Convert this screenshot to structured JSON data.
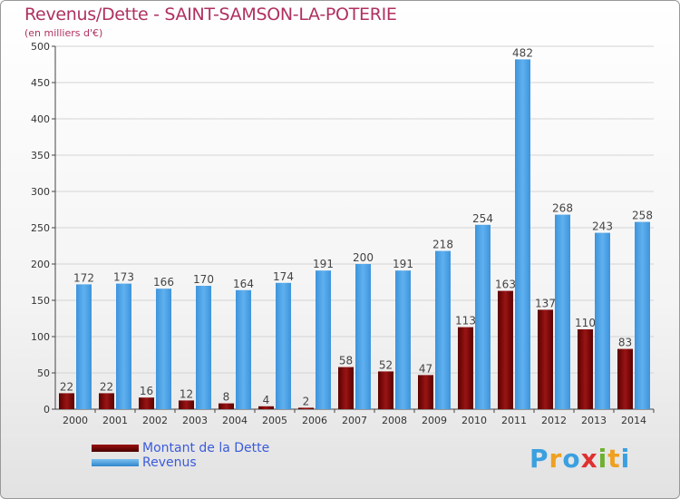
{
  "chart_data": {
    "type": "bar",
    "title": "Revenus/Dette - SAINT-SAMSON-LA-POTERIE",
    "subtitle": "(en milliers d'€)",
    "categories": [
      "2000",
      "2001",
      "2002",
      "2003",
      "2004",
      "2005",
      "2006",
      "2007",
      "2008",
      "2009",
      "2010",
      "2011",
      "2012",
      "2013",
      "2014"
    ],
    "series": [
      {
        "name": "Montant de la Dette",
        "color": "#7a0000",
        "values": [
          22,
          22,
          16,
          12,
          8,
          4,
          2,
          58,
          52,
          47,
          113,
          163,
          137,
          110,
          83
        ]
      },
      {
        "name": "Revenus",
        "color": "#4ea3e6",
        "values": [
          172,
          173,
          166,
          170,
          164,
          174,
          191,
          200,
          191,
          218,
          254,
          482,
          268,
          243,
          258
        ]
      }
    ],
    "ylim": [
      0,
      500
    ],
    "yticks": [
      0,
      50,
      100,
      150,
      200,
      250,
      300,
      350,
      400,
      450,
      500
    ],
    "grid": true,
    "legend_position": "bottom-left"
  },
  "logo": {
    "letters": [
      "P",
      "r",
      "o",
      "x",
      "i",
      "t",
      "i"
    ],
    "colors": [
      "#3aa0e0",
      "#f0a020",
      "#3aa0e0",
      "#e03030",
      "#70b030",
      "#f0a020",
      "#3aa0e0"
    ]
  }
}
